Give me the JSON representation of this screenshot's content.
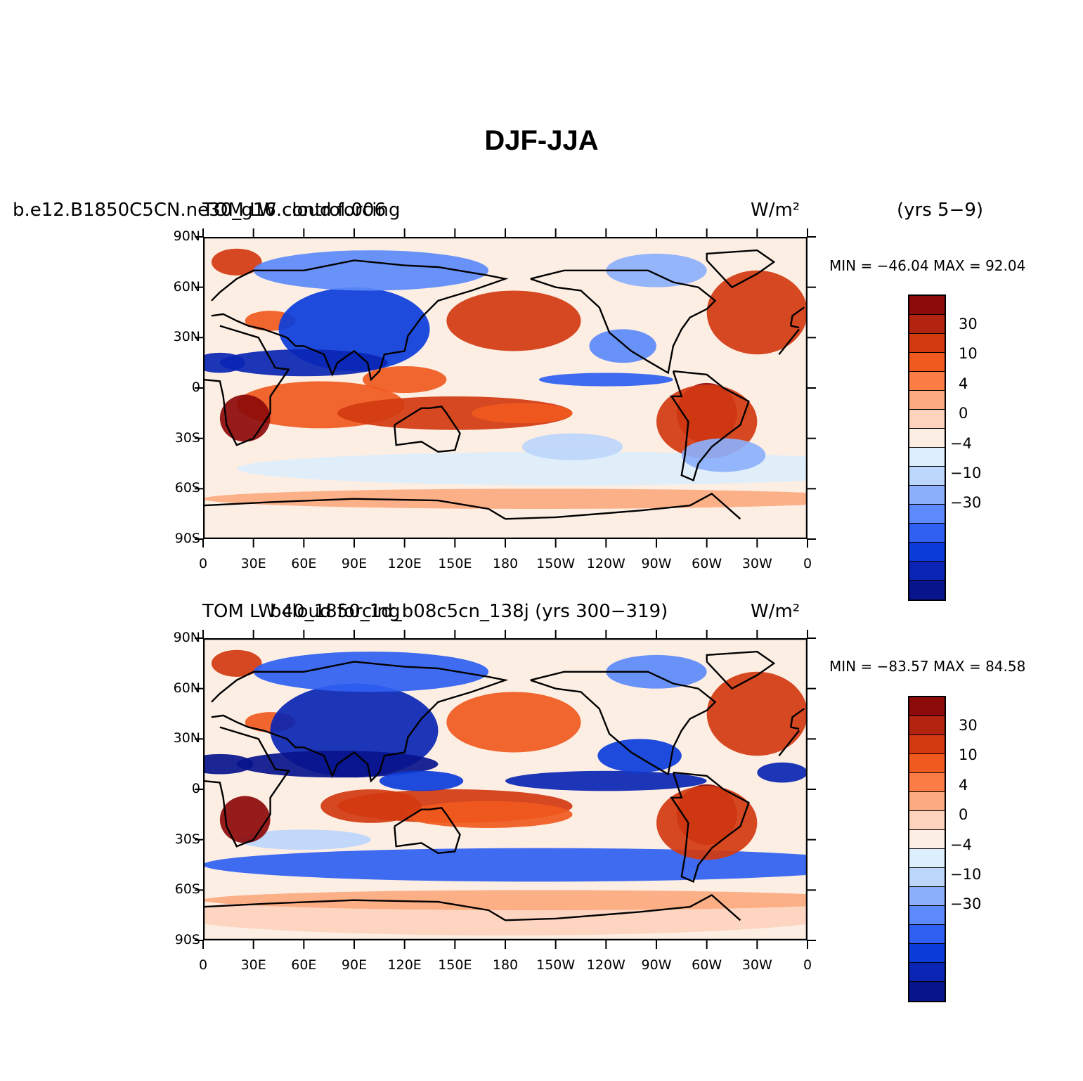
{
  "page_title": "DJF-JJA",
  "levels": {
    "colors": [
      "#8c0a0a",
      "#b32410",
      "#d33a10",
      "#f05a1e",
      "#fb7c44",
      "#fcaa80",
      "#fdd3bd",
      "#fdeee3",
      "#ddeefc",
      "#bcd6fc",
      "#8cb0fc",
      "#5c8afa",
      "#2f60f2",
      "#0b3ddb",
      "#0a25b3",
      "#08148c"
    ],
    "labels": [
      "30",
      "10",
      "4",
      "0",
      "−4",
      "−10",
      "−30"
    ]
  },
  "chart_data": [
    {
      "type": "heatmap",
      "left_title": "b.e12.B1850C5CN.ne30_g16.control.006",
      "center_title": "TOM LW cloud forcing",
      "right_title": "(yrs 5−9)",
      "units": "W/m²",
      "min_max_text": "MIN = −46.04 MAX =  92.04",
      "min": -46.04,
      "max": 92.04,
      "xlim": [
        0,
        360
      ],
      "ylim": [
        -90,
        90
      ],
      "xticks": [
        "0",
        "30E",
        "60E",
        "90E",
        "120E",
        "150E",
        "180",
        "150W",
        "120W",
        "90W",
        "60W",
        "30W",
        "0"
      ],
      "yticks": [
        "90N",
        "60N",
        "30N",
        "0",
        "30S",
        "60S",
        "90S"
      ]
    },
    {
      "type": "heatmap",
      "left_title": "TOM LW cloud forcing",
      "center_title": "b40_1850_1d_b08c5cn_138j (yrs 300−319)",
      "right_title": "",
      "units": "W/m²",
      "min_max_text": "MIN = −83.57 MAX =  84.58",
      "min": -83.57,
      "max": 84.58,
      "xlim": [
        0,
        360
      ],
      "ylim": [
        -90,
        90
      ],
      "xticks": [
        "0",
        "30E",
        "60E",
        "90E",
        "120E",
        "150E",
        "180",
        "150W",
        "120W",
        "90W",
        "60W",
        "30W",
        "0"
      ],
      "yticks": [
        "90N",
        "60N",
        "30N",
        "0",
        "30S",
        "60S",
        "90S"
      ]
    }
  ]
}
